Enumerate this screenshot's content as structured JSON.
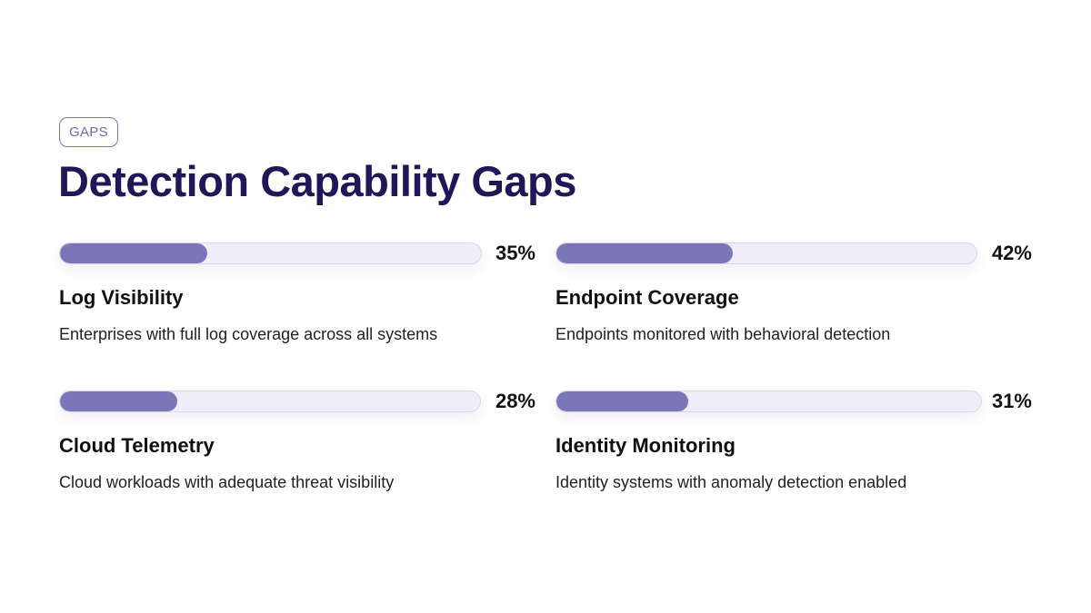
{
  "tag": "GAPS",
  "title": "Detection Capability Gaps",
  "colors": {
    "title": "#1f1757",
    "bar_fill": "#7b76b7",
    "bar_track": "#efeef8",
    "tag_border": "#7b74b6"
  },
  "metrics": [
    {
      "label": "Log Visibility",
      "percent": 35,
      "percent_label": "35%",
      "description": "Enterprises with full log coverage across all systems"
    },
    {
      "label": "Endpoint Coverage",
      "percent": 42,
      "percent_label": "42%",
      "description": "Endpoints monitored with behavioral detection"
    },
    {
      "label": "Cloud Telemetry",
      "percent": 28,
      "percent_label": "28%",
      "description": "Cloud workloads with adequate threat visibility"
    },
    {
      "label": "Identity Monitoring",
      "percent": 31,
      "percent_label": "31%",
      "description": "Identity systems with anomaly detection enabled"
    }
  ]
}
